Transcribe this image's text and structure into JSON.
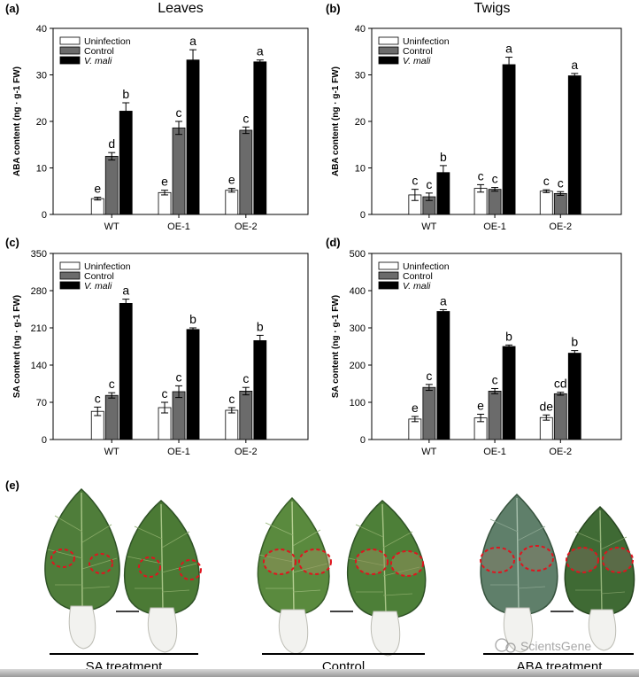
{
  "chart_data": [
    {
      "panel": "(a)",
      "type": "bar",
      "title": "Leaves",
      "ylabel": "ABA content (ng · g-1 FW)",
      "ylim": [
        0,
        40
      ],
      "yticks": [
        0,
        10,
        20,
        30,
        40
      ],
      "categories": [
        "WT",
        "OE-1",
        "OE-2"
      ],
      "series": [
        {
          "name": "Uninfection",
          "color": "#ffffff",
          "values": [
            3.4,
            4.7,
            5.2
          ],
          "errors": [
            0.3,
            0.5,
            0.4
          ],
          "letters": [
            "e",
            "e",
            "e"
          ]
        },
        {
          "name": "Control",
          "color": "#6b6b6b",
          "values": [
            12.5,
            18.6,
            18.1
          ],
          "errors": [
            0.8,
            1.4,
            0.7
          ],
          "letters": [
            "d",
            "c",
            "c"
          ]
        },
        {
          "name": "V. mali",
          "color": "#000000",
          "values": [
            22.2,
            33.2,
            32.8
          ],
          "errors": [
            1.8,
            2.2,
            0.4
          ],
          "letters": [
            "b",
            "a",
            "a"
          ]
        }
      ]
    },
    {
      "panel": "(b)",
      "type": "bar",
      "title": "Twigs",
      "ylabel": "ABA content (ng · g-1 FW)",
      "ylim": [
        0,
        40
      ],
      "yticks": [
        0,
        10,
        20,
        30,
        40
      ],
      "categories": [
        "WT",
        "OE-1",
        "OE-2"
      ],
      "series": [
        {
          "name": "Uninfection",
          "color": "#ffffff",
          "values": [
            4.2,
            5.6,
            5.0
          ],
          "errors": [
            1.2,
            0.8,
            0.3
          ],
          "letters": [
            "c",
            "c",
            "c"
          ]
        },
        {
          "name": "Control",
          "color": "#6b6b6b",
          "values": [
            3.8,
            5.4,
            4.5
          ],
          "errors": [
            0.8,
            0.4,
            0.4
          ],
          "letters": [
            "c",
            "c",
            "c"
          ]
        },
        {
          "name": "V. mali",
          "color": "#000000",
          "values": [
            9.0,
            32.2,
            29.8
          ],
          "errors": [
            1.5,
            1.6,
            0.5
          ],
          "letters": [
            "b",
            "a",
            "a"
          ]
        }
      ]
    },
    {
      "panel": "(c)",
      "type": "bar",
      "title": "",
      "ylabel": "SA content (ng · g-1 FW)",
      "ylim": [
        0,
        350
      ],
      "yticks": [
        0,
        70,
        140,
        210,
        280,
        350
      ],
      "categories": [
        "WT",
        "OE-1",
        "OE-2"
      ],
      "series": [
        {
          "name": "Uninfection",
          "color": "#ffffff",
          "values": [
            53,
            60,
            55
          ],
          "errors": [
            8,
            10,
            5
          ],
          "letters": [
            "c",
            "c",
            "c"
          ]
        },
        {
          "name": "Control",
          "color": "#6b6b6b",
          "values": [
            83,
            90,
            91
          ],
          "errors": [
            5,
            11,
            7
          ],
          "letters": [
            "c",
            "c",
            "c"
          ]
        },
        {
          "name": "V. mali",
          "color": "#000000",
          "values": [
            256,
            207,
            186
          ],
          "errors": [
            8,
            3,
            10
          ],
          "letters": [
            "a",
            "b",
            "b"
          ]
        }
      ]
    },
    {
      "panel": "(d)",
      "type": "bar",
      "title": "",
      "ylabel": "SA content (ng · g-1 FW)",
      "ylim": [
        0,
        500
      ],
      "yticks": [
        0,
        100,
        200,
        300,
        400,
        500
      ],
      "categories": [
        "WT",
        "OE-1",
        "OE-2"
      ],
      "series": [
        {
          "name": "Uninfection",
          "color": "#ffffff",
          "values": [
            55,
            58,
            59
          ],
          "errors": [
            7,
            10,
            7
          ],
          "letters": [
            "e",
            "e",
            "de"
          ]
        },
        {
          "name": "Control",
          "color": "#6b6b6b",
          "values": [
            140,
            130,
            123
          ],
          "errors": [
            8,
            7,
            4
          ],
          "letters": [
            "c",
            "c",
            "cd"
          ]
        },
        {
          "name": "V. mali",
          "color": "#000000",
          "values": [
            344,
            250,
            232
          ],
          "errors": [
            5,
            4,
            7
          ],
          "letters": [
            "a",
            "b",
            "b"
          ]
        }
      ]
    }
  ],
  "photo_panel": {
    "label": "(e)",
    "groups": [
      "SA treatment",
      "Control",
      "ABA treatment"
    ],
    "watermark": "ScientsGene"
  },
  "colors": {
    "leaf_sa": "#4f7d3a",
    "leaf_control": "#5a8a3e",
    "leaf_aba": "#3f6a34",
    "lesion_ring": "#e0141e",
    "petiole_wrap": "#f2f2ef"
  }
}
